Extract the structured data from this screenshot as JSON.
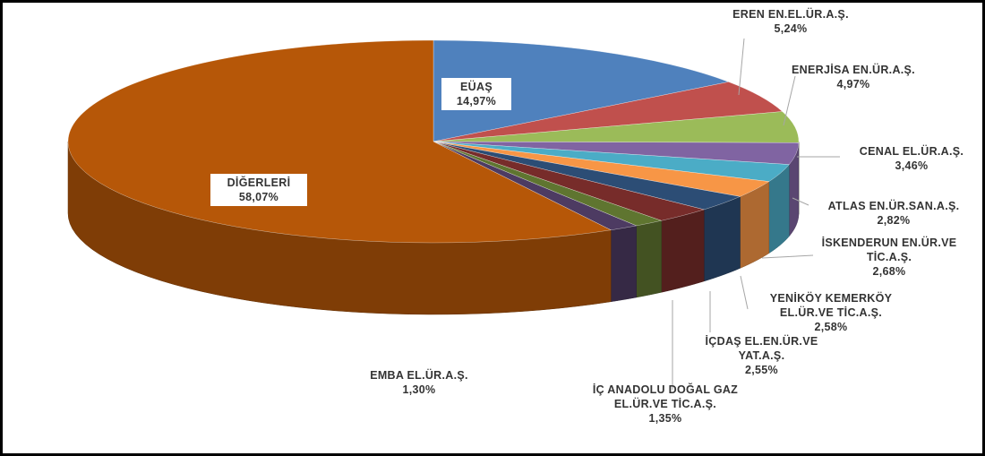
{
  "chart_data": {
    "type": "pie",
    "categories": [
      "EÜAŞ",
      "EREN EN.EL.ÜR.A.Ş.",
      "ENERJİSA EN.ÜR.A.Ş.",
      "CENAL EL.ÜR.A.Ş.",
      "ATLAS EN.ÜR.SAN.A.Ş.",
      "İSKENDERUN EN.ÜR.VE TİC.A.Ş.",
      "YENİKÖY KEMERKÖY EL.ÜR.VE TİC.A.Ş.",
      "İÇDAŞ EL.EN.ÜR.VE YAT.A.Ş.",
      "İÇ ANADOLU DOĞAL GAZ EL.ÜR.VE TİC.A.Ş.",
      "EMBA EL.ÜR.A.Ş.",
      "DİĞERLERİ"
    ],
    "values": [
      14.97,
      5.24,
      4.97,
      3.46,
      2.82,
      2.68,
      2.58,
      2.55,
      1.35,
      1.3,
      58.07
    ],
    "value_labels": [
      "14,97%",
      "5,24%",
      "4,97%",
      "3,46%",
      "2,82%",
      "2,68%",
      "2,58%",
      "2,55%",
      "1,35%",
      "1,30%",
      "58,07%"
    ],
    "colors": [
      "#4f81bd",
      "#c0504d",
      "#9bbb59",
      "#8064a2",
      "#4bacc6",
      "#f79646",
      "#2c4d75",
      "#772c2a",
      "#5f7530",
      "#4d3b62",
      "#b65708"
    ]
  }
}
